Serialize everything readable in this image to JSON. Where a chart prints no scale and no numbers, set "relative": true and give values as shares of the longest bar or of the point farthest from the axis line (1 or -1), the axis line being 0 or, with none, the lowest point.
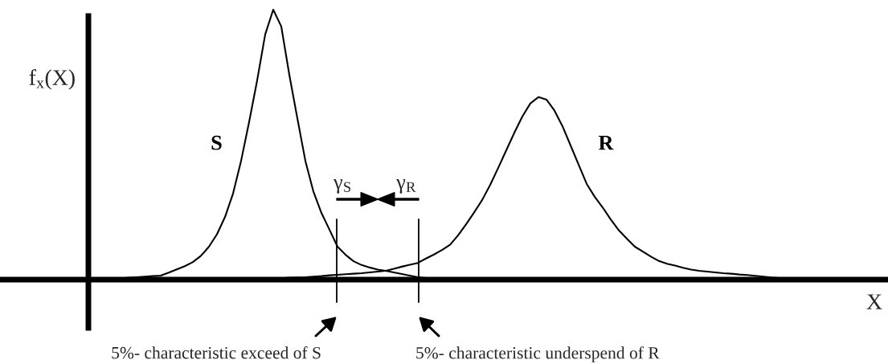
{
  "chart_data": {
    "type": "line",
    "relative": true,
    "xlabel": "X",
    "ylabel": "f$_{x}$(X)",
    "categories": [
      null,
      null,
      null,
      null,
      null,
      null,
      null,
      null,
      null,
      null,
      null,
      null,
      null,
      null,
      null,
      null,
      null,
      null,
      null,
      null,
      null,
      null,
      null,
      null,
      null,
      null,
      null,
      null,
      null,
      null,
      null,
      null,
      null,
      null,
      null,
      null,
      null,
      null,
      null,
      null,
      null,
      null,
      null,
      null,
      null,
      null,
      null,
      null,
      null,
      null,
      null,
      null,
      null,
      null,
      null,
      null,
      null,
      null,
      null,
      null,
      null,
      null,
      null,
      null,
      null,
      null,
      null,
      null,
      null,
      null,
      null,
      null,
      null,
      null,
      null,
      null,
      null,
      null,
      null,
      null,
      null,
      null,
      null,
      null,
      null,
      null,
      null,
      null,
      null,
      null
    ],
    "series": [
      {
        "name": "S",
        "color": "#000000",
        "values": [
          null,
          null,
          null,
          0.0,
          0.004,
          0.007,
          0.009,
          0.011,
          0.013,
          0.015,
          0.026,
          0.038,
          0.05,
          0.065,
          0.088,
          0.122,
          0.168,
          0.232,
          0.319,
          0.44,
          0.584,
          0.738,
          0.908,
          1.0,
          0.938,
          0.759,
          0.598,
          0.44,
          0.326,
          0.247,
          0.185,
          0.122,
          0.092,
          0.068,
          0.054,
          0.045,
          0.037,
          0.033,
          0.027,
          0.021,
          0.015,
          0.009,
          0.006,
          0.0,
          null,
          null,
          null,
          null,
          null,
          null,
          null,
          null,
          null,
          null,
          null,
          null,
          null,
          null,
          null,
          null,
          null,
          null,
          null,
          null,
          null,
          null,
          null,
          null,
          null,
          null,
          null,
          null,
          null,
          null,
          null,
          null,
          null,
          null,
          null,
          null,
          null,
          null,
          null,
          null,
          null,
          null,
          null,
          null,
          null,
          null
        ]
      },
      {
        "name": "R",
        "color": "#000000",
        "values": [
          null,
          null,
          null,
          null,
          null,
          null,
          null,
          null,
          null,
          null,
          null,
          null,
          null,
          null,
          null,
          null,
          null,
          null,
          null,
          null,
          null,
          null,
          0.0,
          0.004,
          0.005,
          0.007,
          0.008,
          0.009,
          0.011,
          0.013,
          0.016,
          0.018,
          0.02,
          0.022,
          0.024,
          0.027,
          0.03,
          0.033,
          0.04,
          0.048,
          0.055,
          0.062,
          0.078,
          0.093,
          0.11,
          0.129,
          0.164,
          0.205,
          0.249,
          0.295,
          0.351,
          0.414,
          0.479,
          0.544,
          0.604,
          0.653,
          0.676,
          0.667,
          0.626,
          0.568,
          0.497,
          0.426,
          0.355,
          0.307,
          0.267,
          0.223,
          0.183,
          0.152,
          0.122,
          0.104,
          0.085,
          0.069,
          0.059,
          0.052,
          0.044,
          0.037,
          0.033,
          0.03,
          0.027,
          0.024,
          0.022,
          0.019,
          0.017,
          0.014,
          0.011,
          0.008,
          0.006,
          0.005,
          0.004,
          0.0
        ]
      }
    ],
    "annotations": [
      "γ$_{S}$",
      "γ$_{R}$",
      "5%- characteristic exceed of S",
      "5%- characteristic underspend of R"
    ],
    "marker": "none",
    "line_style": "solid"
  }
}
